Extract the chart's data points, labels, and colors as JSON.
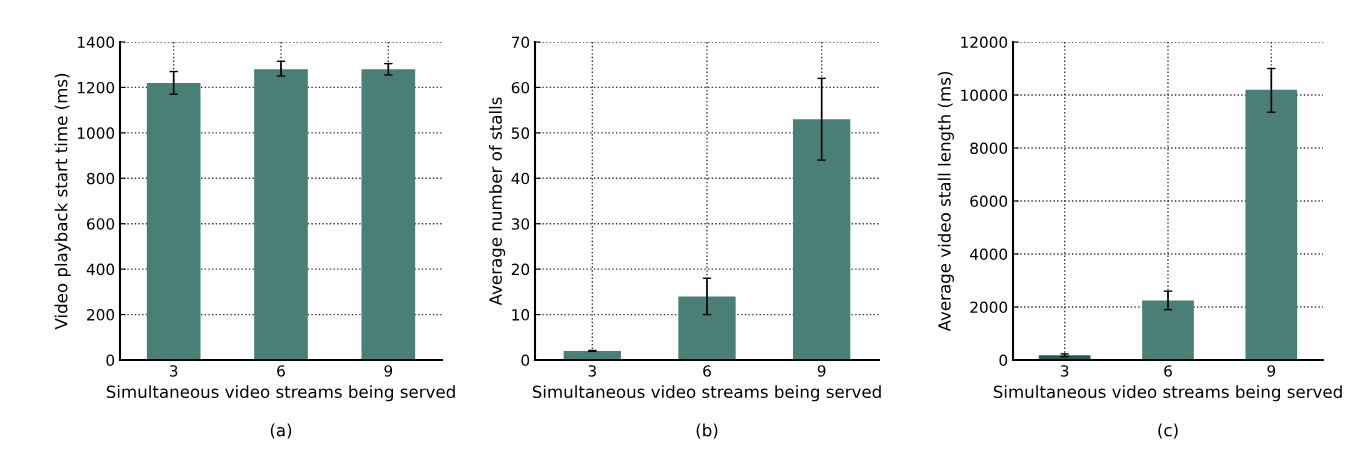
{
  "chart_data": [
    {
      "type": "bar",
      "categories": [
        "3",
        "6",
        "9"
      ],
      "values": [
        1220,
        1280,
        1280
      ],
      "errors": [
        [
          1170,
          1270
        ],
        [
          1250,
          1315
        ],
        [
          1255,
          1305
        ]
      ],
      "color": "#4a7f76",
      "xlabel": "Simultaneous video streams being served",
      "ylabel": "Video playback start time (ms)",
      "ylim": [
        0,
        1400
      ],
      "yticks": [
        0,
        200,
        400,
        600,
        800,
        1000,
        1200,
        1400
      ],
      "grid": true,
      "annotations": [
        "(a)"
      ]
    },
    {
      "type": "bar",
      "categories": [
        "3",
        "6",
        "9"
      ],
      "values": [
        2,
        14,
        53
      ],
      "errors": [
        [
          1.9,
          2.1
        ],
        [
          10,
          18
        ],
        [
          44,
          62
        ]
      ],
      "color": "#4a7f76",
      "xlabel": "Simultaneous video streams being served",
      "ylabel": "Average number of stalls",
      "ylim": [
        0,
        70
      ],
      "yticks": [
        0,
        10,
        20,
        30,
        40,
        50,
        60,
        70
      ],
      "grid": true,
      "annotations": [
        "(b)"
      ]
    },
    {
      "type": "bar",
      "categories": [
        "3",
        "6",
        "9"
      ],
      "values": [
        180,
        2250,
        10200
      ],
      "errors": [
        [
          130,
          230
        ],
        [
          1900,
          2600
        ],
        [
          9350,
          11000
        ]
      ],
      "colors": [
        "#1b5e53",
        "#4a7f76",
        "#4a7f76"
      ],
      "xlabel": "Simultaneous video streams being served",
      "ylabel": "Average video stall length (ms)",
      "ylim": [
        0,
        12000
      ],
      "yticks": [
        0,
        2000,
        4000,
        6000,
        8000,
        10000,
        12000
      ],
      "grid": true,
      "annotations": [
        "(c)"
      ]
    }
  ]
}
